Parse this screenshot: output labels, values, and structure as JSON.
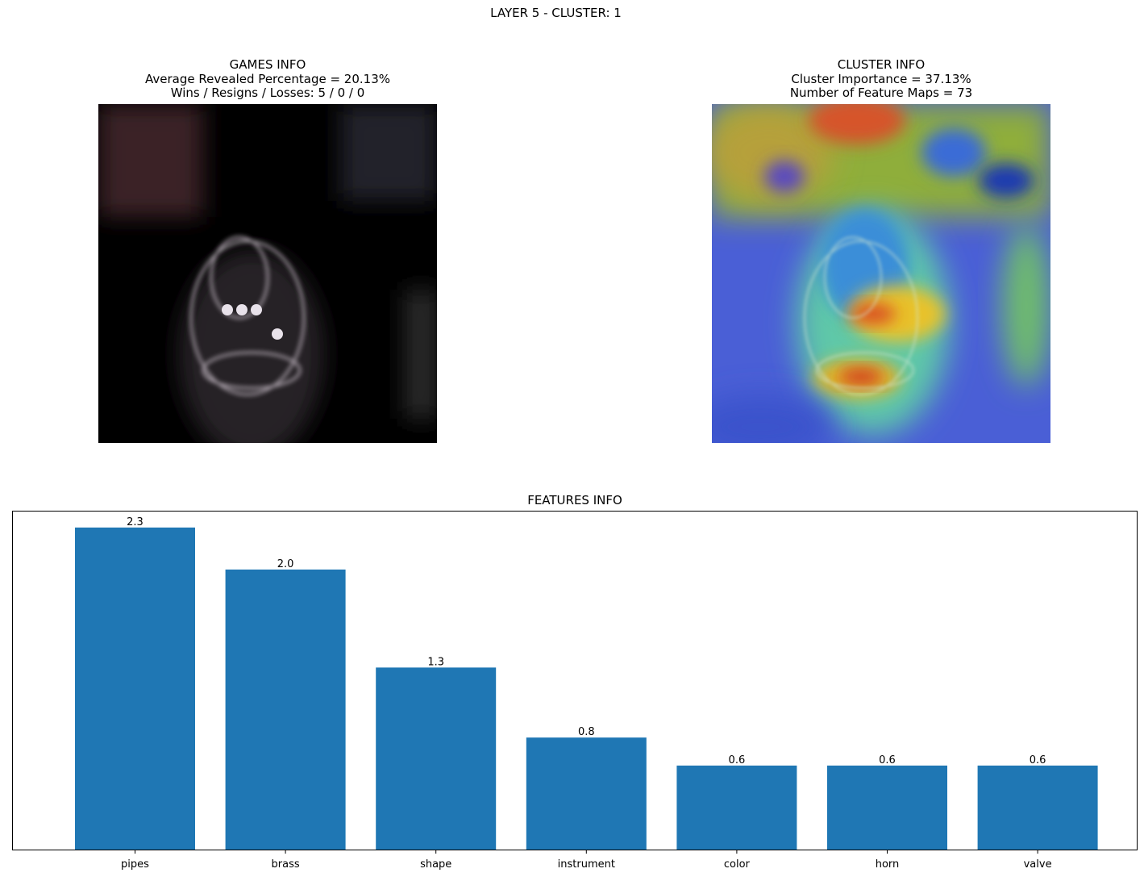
{
  "suptitle": "LAYER 5 - CLUSTER: 1",
  "games_info": {
    "title": "GAMES INFO",
    "line1": "Average Revealed Percentage = 20.13%",
    "line2": "Wins / Resigns / Losses: 5 / 0 / 0"
  },
  "cluster_info": {
    "title": "CLUSTER INFO",
    "line1": "Cluster Importance = 37.13%",
    "line2": "Number of Feature Maps = 73"
  },
  "chart_data": {
    "type": "bar",
    "title": "FEATURES INFO",
    "categories": [
      "pipes",
      "brass",
      "shape",
      "instrument",
      "color",
      "horn",
      "valve"
    ],
    "values": [
      2.3,
      2.0,
      1.3,
      0.8,
      0.6,
      0.6,
      0.6
    ],
    "value_labels": [
      "2.3",
      "2.0",
      "1.3",
      "0.8",
      "0.6",
      "0.6",
      "0.6"
    ],
    "bar_color": "#1f77b4",
    "ylim": [
      0,
      2.42
    ],
    "y_ticks_visible": false,
    "grid": false,
    "xlabel": "",
    "ylabel": ""
  }
}
